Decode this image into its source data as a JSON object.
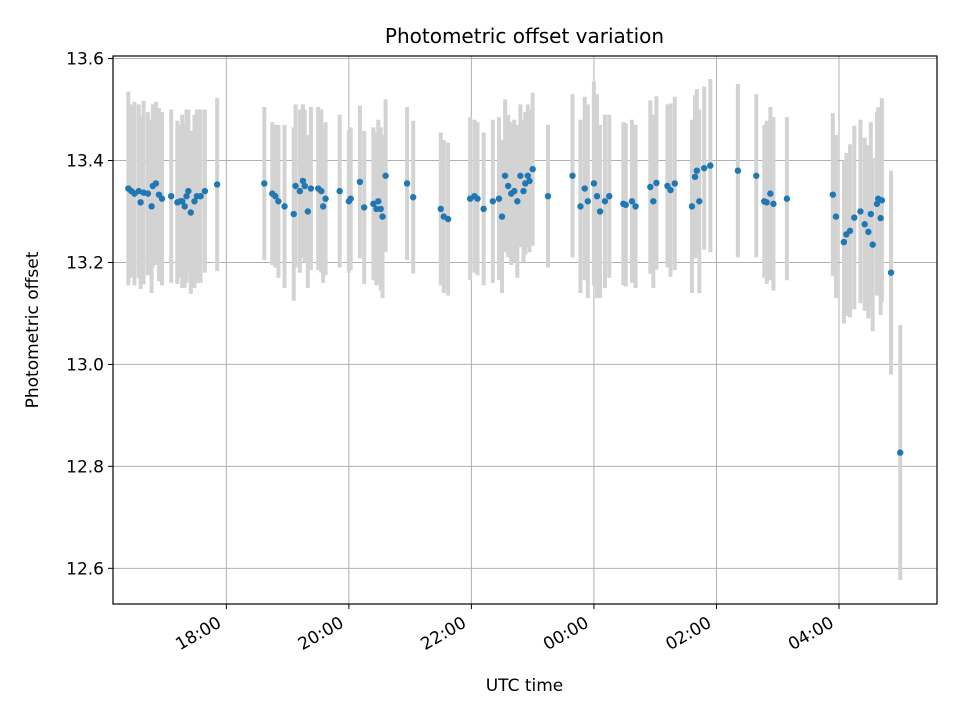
{
  "chart_data": {
    "type": "scatter",
    "title": "Photometric offset variation",
    "xlabel": "UTC time",
    "ylabel": "Photometric offset",
    "ylim": [
      12.53,
      13.605
    ],
    "xlim_hours": [
      16.15,
      29.6
    ],
    "grid": true,
    "x_ticks": [
      {
        "hour": 18,
        "label": "18:00"
      },
      {
        "hour": 20,
        "label": "20:00"
      },
      {
        "hour": 22,
        "label": "22:00"
      },
      {
        "hour": 24,
        "label": "00:00"
      },
      {
        "hour": 26,
        "label": "02:00"
      },
      {
        "hour": 28,
        "label": "04:00"
      }
    ],
    "y_ticks": [
      {
        "value": 12.6,
        "label": "12.6"
      },
      {
        "value": 12.8,
        "label": "12.8"
      },
      {
        "value": 13.0,
        "label": "13.0"
      },
      {
        "value": 13.2,
        "label": "13.2"
      },
      {
        "value": 13.4,
        "label": "13.4"
      },
      {
        "value": 13.6,
        "label": "13.6"
      }
    ],
    "colors": {
      "point": "#1f77b4",
      "errorbar": "#d3d3d3",
      "grid": "#b0b0b0",
      "axis": "#000000"
    },
    "points": [
      [
        16.4,
        13.345,
        0.19
      ],
      [
        16.45,
        13.34,
        0.17
      ],
      [
        16.5,
        13.335,
        0.18
      ],
      [
        16.57,
        13.34,
        0.17
      ],
      [
        16.6,
        13.318,
        0.17
      ],
      [
        16.65,
        13.337,
        0.18
      ],
      [
        16.72,
        13.335,
        0.16
      ],
      [
        16.78,
        13.31,
        0.17
      ],
      [
        16.8,
        13.35,
        0.16
      ],
      [
        16.85,
        13.355,
        0.16
      ],
      [
        16.9,
        13.333,
        0.17
      ],
      [
        16.95,
        13.325,
        0.17
      ],
      [
        17.1,
        13.33,
        0.17
      ],
      [
        17.2,
        13.318,
        0.16
      ],
      [
        17.25,
        13.32,
        0.15
      ],
      [
        17.28,
        13.32,
        0.17
      ],
      [
        17.32,
        13.31,
        0.16
      ],
      [
        17.35,
        13.33,
        0.17
      ],
      [
        17.38,
        13.34,
        0.16
      ],
      [
        17.42,
        13.298,
        0.16
      ],
      [
        17.48,
        13.32,
        0.17
      ],
      [
        17.52,
        13.33,
        0.17
      ],
      [
        17.58,
        13.33,
        0.17
      ],
      [
        17.65,
        13.34,
        0.16
      ],
      [
        17.85,
        13.353,
        0.17
      ],
      [
        18.62,
        13.355,
        0.15
      ],
      [
        18.75,
        13.335,
        0.14
      ],
      [
        18.8,
        13.33,
        0.14
      ],
      [
        18.85,
        13.32,
        0.15
      ],
      [
        18.95,
        13.31,
        0.16
      ],
      [
        19.1,
        13.295,
        0.17
      ],
      [
        19.13,
        13.35,
        0.16
      ],
      [
        19.2,
        13.34,
        0.16
      ],
      [
        19.25,
        13.36,
        0.15
      ],
      [
        19.28,
        13.35,
        0.15
      ],
      [
        19.33,
        13.3,
        0.15
      ],
      [
        19.38,
        13.345,
        0.16
      ],
      [
        19.5,
        13.345,
        0.16
      ],
      [
        19.55,
        13.34,
        0.16
      ],
      [
        19.58,
        13.31,
        0.15
      ],
      [
        19.62,
        13.325,
        0.15
      ],
      [
        19.85,
        13.34,
        0.15
      ],
      [
        20.0,
        13.32,
        0.14
      ],
      [
        20.03,
        13.325,
        0.14
      ],
      [
        20.18,
        13.358,
        0.15
      ],
      [
        20.25,
        13.308,
        0.15
      ],
      [
        20.4,
        13.315,
        0.15
      ],
      [
        20.45,
        13.305,
        0.15
      ],
      [
        20.48,
        13.32,
        0.16
      ],
      [
        20.52,
        13.305,
        0.16
      ],
      [
        20.55,
        13.29,
        0.16
      ],
      [
        20.6,
        13.37,
        0.15
      ],
      [
        20.95,
        13.355,
        0.15
      ],
      [
        21.05,
        13.328,
        0.15
      ],
      [
        21.5,
        13.305,
        0.15
      ],
      [
        21.55,
        13.29,
        0.15
      ],
      [
        21.62,
        13.285,
        0.15
      ],
      [
        21.98,
        13.325,
        0.16
      ],
      [
        22.05,
        13.33,
        0.15
      ],
      [
        22.1,
        13.325,
        0.15
      ],
      [
        22.2,
        13.305,
        0.15
      ],
      [
        22.35,
        13.32,
        0.16
      ],
      [
        22.45,
        13.325,
        0.16
      ],
      [
        22.5,
        13.29,
        0.15
      ],
      [
        22.55,
        13.37,
        0.15
      ],
      [
        22.6,
        13.35,
        0.14
      ],
      [
        22.65,
        13.335,
        0.14
      ],
      [
        22.7,
        13.34,
        0.14
      ],
      [
        22.75,
        13.32,
        0.15
      ],
      [
        22.8,
        13.37,
        0.14
      ],
      [
        22.85,
        13.34,
        0.14
      ],
      [
        22.88,
        13.355,
        0.14
      ],
      [
        22.92,
        13.37,
        0.14
      ],
      [
        22.95,
        13.36,
        0.14
      ],
      [
        23.0,
        13.383,
        0.15
      ],
      [
        23.25,
        13.33,
        0.14
      ],
      [
        23.65,
        13.37,
        0.16
      ],
      [
        23.78,
        13.31,
        0.17
      ],
      [
        23.85,
        13.345,
        0.18
      ],
      [
        23.9,
        13.32,
        0.19
      ],
      [
        24.0,
        13.355,
        0.2
      ],
      [
        24.05,
        13.33,
        0.2
      ],
      [
        24.1,
        13.3,
        0.17
      ],
      [
        24.18,
        13.32,
        0.17
      ],
      [
        24.25,
        13.33,
        0.16
      ],
      [
        24.48,
        13.315,
        0.16
      ],
      [
        24.52,
        13.313,
        0.16
      ],
      [
        24.62,
        13.32,
        0.16
      ],
      [
        24.68,
        13.31,
        0.16
      ],
      [
        24.92,
        13.348,
        0.17
      ],
      [
        24.97,
        13.32,
        0.17
      ],
      [
        25.02,
        13.356,
        0.17
      ],
      [
        25.2,
        13.35,
        0.16
      ],
      [
        25.25,
        13.342,
        0.17
      ],
      [
        25.32,
        13.355,
        0.17
      ],
      [
        25.6,
        13.31,
        0.17
      ],
      [
        25.65,
        13.368,
        0.16
      ],
      [
        25.68,
        13.38,
        0.16
      ],
      [
        25.72,
        13.32,
        0.18
      ],
      [
        25.8,
        13.385,
        0.16
      ],
      [
        25.9,
        13.39,
        0.17
      ],
      [
        26.35,
        13.38,
        0.17
      ],
      [
        26.65,
        13.37,
        0.16
      ],
      [
        26.78,
        13.32,
        0.15
      ],
      [
        26.82,
        13.318,
        0.16
      ],
      [
        26.88,
        13.335,
        0.17
      ],
      [
        26.93,
        13.315,
        0.17
      ],
      [
        27.15,
        13.325,
        0.16
      ],
      [
        27.9,
        13.333,
        0.16
      ],
      [
        27.95,
        13.29,
        0.16
      ],
      [
        28.08,
        13.24,
        0.16
      ],
      [
        28.12,
        13.255,
        0.16
      ],
      [
        28.18,
        13.262,
        0.17
      ],
      [
        28.25,
        13.288,
        0.18
      ],
      [
        28.35,
        13.3,
        0.18
      ],
      [
        28.42,
        13.275,
        0.17
      ],
      [
        28.48,
        13.26,
        0.17
      ],
      [
        28.52,
        13.295,
        0.18
      ],
      [
        28.55,
        13.235,
        0.17
      ],
      [
        28.62,
        13.315,
        0.18
      ],
      [
        28.64,
        13.325,
        0.18
      ],
      [
        28.68,
        13.287,
        0.19
      ],
      [
        28.7,
        13.322,
        0.2
      ],
      [
        28.85,
        13.18,
        0.2
      ],
      [
        29.0,
        12.827,
        0.25
      ]
    ]
  }
}
